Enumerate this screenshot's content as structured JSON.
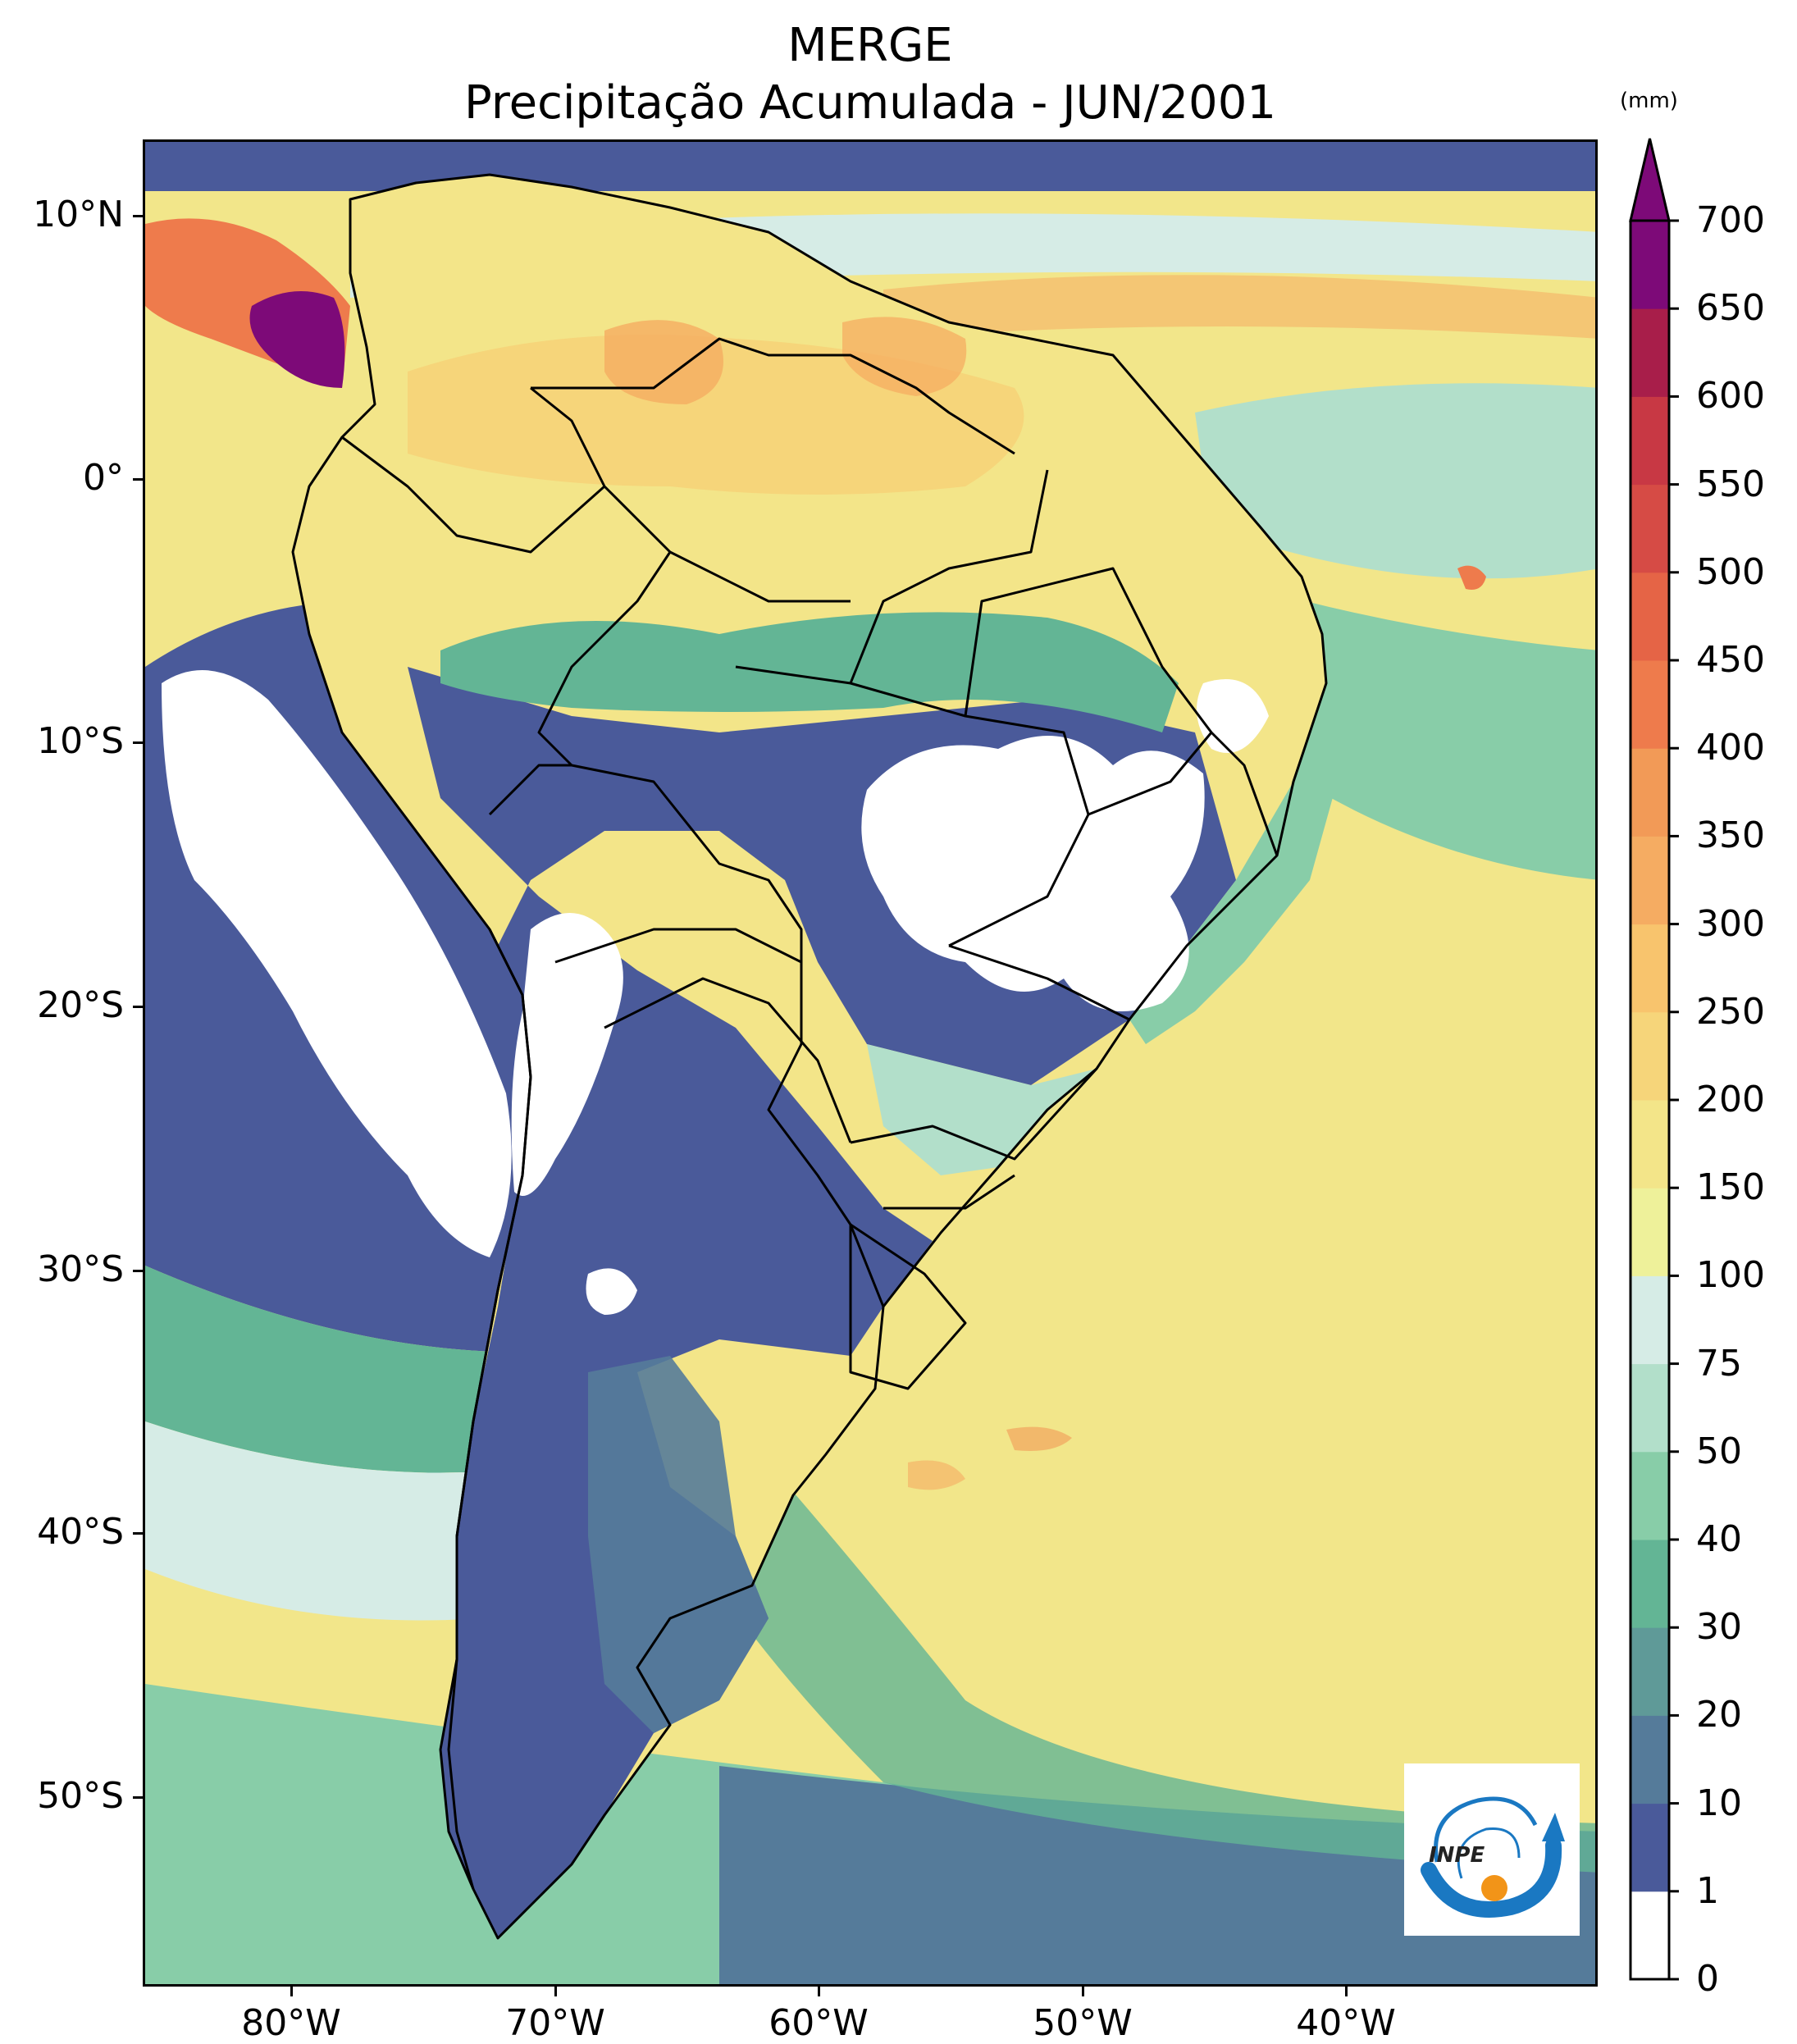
{
  "title": "MERGE",
  "subtitle": "Precipitação Acumulada - JUN/2001",
  "y_axis_labels": [
    "10°N",
    "0°",
    "10°S",
    "20°S",
    "30°S",
    "40°S",
    "50°S"
  ],
  "x_axis_labels": [
    "80°W",
    "70°W",
    "60°W",
    "50°W",
    "40°W"
  ],
  "colorbar": {
    "unit": "(mm)",
    "levels": [
      "0",
      "1",
      "10",
      "20",
      "30",
      "40",
      "50",
      "75",
      "100",
      "150",
      "200",
      "250",
      "300",
      "350",
      "400",
      "450",
      "500",
      "550",
      "600",
      "650",
      "700"
    ],
    "colors": [
      "#ffffff",
      "#4a5a9a",
      "#557b9a",
      "#5f9a98",
      "#63b595",
      "#88cda8",
      "#b2dfca",
      "#d6ece6",
      "#eef19a",
      "#f3e589",
      "#f6d57a",
      "#f8c46d",
      "#f5ac62",
      "#f29a57",
      "#ee7b4c",
      "#e56446",
      "#d64b45",
      "#c83844",
      "#a81e4a",
      "#7d0a78"
    ],
    "extend_color": "#7d0a78"
  },
  "logo": {
    "text": "INPE",
    "primary_color": "#1a78c2",
    "accent_color": "#f29418"
  },
  "map_colors": {
    "ocean_base": "#f2e68a",
    "dry": "#ffffff",
    "very_low": "#4a5a9a",
    "low": "#557b9a",
    "mid_low": "#63b595",
    "mid": "#b2dfca",
    "high": "#f6d57a",
    "very_high": "#ee7b4c",
    "extreme": "#7d0a78",
    "border": "#000000"
  }
}
